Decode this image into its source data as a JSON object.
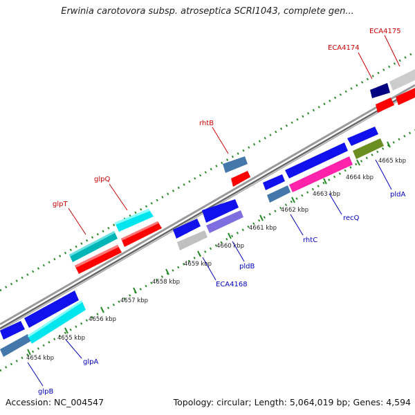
{
  "title": "Erwinia carotovora subsp. atroseptica SCRI1043, complete gen...",
  "footer": {
    "accession": "Accession: NC_004547",
    "summary": "Topology: circular; Length: 5,064,019 bp; Genes: 4,594"
  },
  "colors": {
    "label_top": "#cc0000",
    "label_bottom": "#0000bb",
    "dotted_track": "#2a8a2a",
    "backbone": "#888888"
  },
  "tick_labels": [
    "4654 kbp",
    "4655 kbp",
    "4656 kbp",
    "4657 kbp",
    "4658 kbp",
    "4659 kbp",
    "4660 kbp",
    "4661 kbp",
    "4662 kbp",
    "4663 kbp",
    "4664 kbp",
    "4665 kbp"
  ],
  "genes_labeled": {
    "top": [
      "glpT",
      "glpQ",
      "rhtB",
      "ECA4174",
      "ECA4175"
    ],
    "bottom": [
      "glpB",
      "glpA",
      "ECA4168",
      "pldB",
      "rhtC",
      "recQ",
      "pldA"
    ]
  }
}
